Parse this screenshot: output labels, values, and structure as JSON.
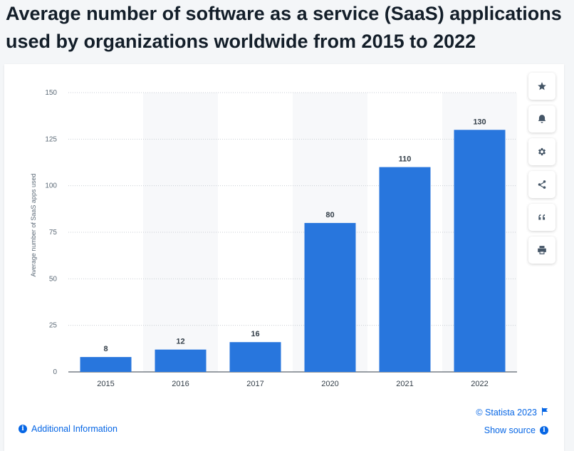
{
  "title": "Average number of software as a service (SaaS) applications used by organizations worldwide from 2015 to 2022",
  "chart_data": {
    "type": "bar",
    "categories": [
      "2015",
      "2016",
      "2017",
      "2020",
      "2021",
      "2022"
    ],
    "values": [
      8,
      12,
      16,
      80,
      110,
      130
    ],
    "data_labels": [
      "8",
      "12",
      "16",
      "80",
      "110",
      "130"
    ],
    "ylabel": "Average number of SaaS apps used",
    "xlabel": "",
    "ylim": [
      0,
      150
    ],
    "yticks": [
      0,
      25,
      50,
      75,
      100,
      125,
      150
    ],
    "ytick_labels": [
      "0",
      "25",
      "50",
      "75",
      "100",
      "125",
      "150"
    ],
    "grid": true,
    "bar_color": "#2876dd",
    "band_color": "#f7f8fa"
  },
  "toolbar": {
    "items": [
      {
        "name": "star-icon"
      },
      {
        "name": "bell-icon"
      },
      {
        "name": "gear-icon"
      },
      {
        "name": "share-icon"
      },
      {
        "name": "quote-icon"
      },
      {
        "name": "print-icon"
      }
    ]
  },
  "footer": {
    "copyright": "© Statista 2023",
    "additional_info": "Additional Information",
    "show_source": "Show source"
  }
}
